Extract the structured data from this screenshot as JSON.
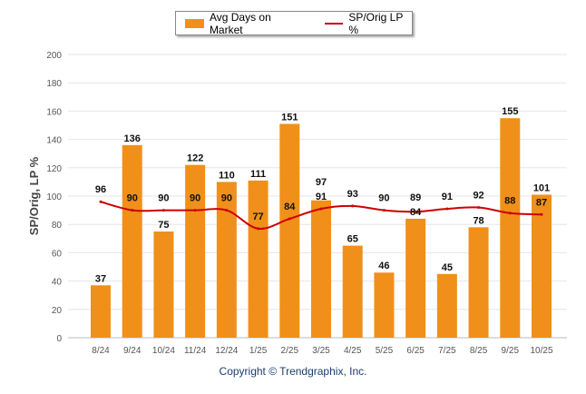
{
  "chart_data": {
    "type": "bar",
    "categories": [
      "8/24",
      "9/24",
      "10/24",
      "11/24",
      "12/24",
      "1/25",
      "2/25",
      "3/25",
      "4/25",
      "5/25",
      "6/25",
      "7/25",
      "8/25",
      "9/25",
      "10/25"
    ],
    "series": [
      {
        "name": "Avg Days on Market",
        "type": "bar",
        "color": "#f0901a",
        "values": [
          37,
          136,
          75,
          122,
          110,
          111,
          151,
          97,
          65,
          46,
          84,
          45,
          78,
          155,
          101
        ]
      },
      {
        "name": "SP/Orig LP %",
        "type": "line",
        "color": "#cc0000",
        "values": [
          96,
          90,
          90,
          90,
          90,
          77,
          84,
          91,
          93,
          90,
          89,
          91,
          92,
          88,
          87
        ]
      }
    ],
    "ylabel": "SP/Orig, LP %",
    "ylim": [
      0,
      200
    ],
    "yticks": [
      0,
      20,
      40,
      60,
      80,
      100,
      120,
      140,
      160,
      180,
      200
    ],
    "grid": true,
    "legend": "top-center"
  },
  "copyright": "Copyright © Trendgraphix, Inc."
}
